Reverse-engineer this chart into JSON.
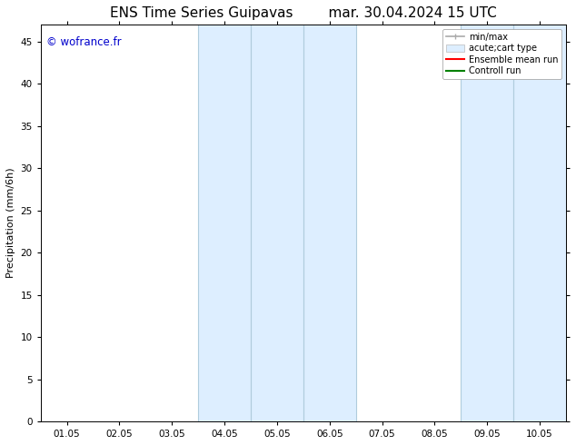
{
  "title_left": "ENS Time Series Guipavas",
  "title_right": "mar. 30.04.2024 15 UTC",
  "ylabel": "Precipitation (mm/6h)",
  "watermark": "© wofrance.fr",
  "watermark_color": "#0000cc",
  "ylim": [
    0,
    47
  ],
  "yticks": [
    0,
    5,
    10,
    15,
    20,
    25,
    30,
    35,
    40,
    45
  ],
  "xtick_labels": [
    "01.05",
    "02.05",
    "03.05",
    "04.05",
    "05.05",
    "06.05",
    "07.05",
    "08.05",
    "09.05",
    "10.05"
  ],
  "shaded_regions": [
    {
      "xmin": 3,
      "xmax": 5,
      "color": "#ddeeff"
    },
    {
      "xmin": 8,
      "xmax": 9,
      "color": "#ddeeff"
    }
  ],
  "vertical_lines_dark": [
    {
      "x": 3,
      "color": "#b0ccdd"
    },
    {
      "x": 4,
      "color": "#b0ccdd"
    },
    {
      "x": 5,
      "color": "#b0ccdd"
    },
    {
      "x": 8,
      "color": "#b0ccdd"
    },
    {
      "x": 9,
      "color": "#b0ccdd"
    }
  ],
  "legend_entries": [
    {
      "label": "min/max",
      "type": "hline",
      "color": "#aaaaaa"
    },
    {
      "label": "acute;cart type",
      "type": "fill",
      "color": "#ddeeff"
    },
    {
      "label": "Ensemble mean run",
      "type": "line",
      "color": "#ff0000"
    },
    {
      "label": "Controll run",
      "type": "line",
      "color": "#008000"
    }
  ],
  "bg_color": "#ffffff",
  "spine_color": "#000000",
  "title_fontsize": 11,
  "label_fontsize": 8,
  "tick_fontsize": 7.5
}
